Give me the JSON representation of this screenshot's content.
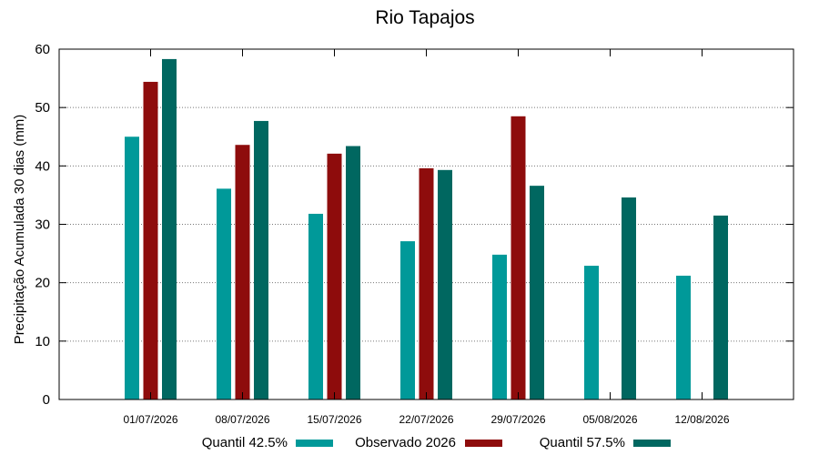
{
  "chart_data": {
    "type": "bar",
    "title": "Rio Tapajos",
    "xlabel": "",
    "ylabel": "Precipitação Acumulada 30 dias (mm)",
    "ylim": [
      0,
      60
    ],
    "yticks": [
      0,
      10,
      20,
      30,
      40,
      50,
      60
    ],
    "grid": "horizontal dotted",
    "legend_position": "bottom",
    "categories": [
      "01/07/2026",
      "08/07/2026",
      "15/07/2026",
      "22/07/2026",
      "29/07/2026",
      "05/08/2026",
      "12/08/2026"
    ],
    "series": [
      {
        "name": "Quantil 42.5%",
        "color": "#009999",
        "values": [
          45.0,
          36.1,
          31.8,
          27.1,
          24.8,
          22.9,
          21.2
        ]
      },
      {
        "name": "Observado 2026",
        "color": "#8e0c0c",
        "values": [
          54.4,
          43.6,
          42.1,
          39.6,
          48.5,
          null,
          null
        ]
      },
      {
        "name": "Quantil 57.5%",
        "color": "#006760",
        "values": [
          58.3,
          47.7,
          43.4,
          39.3,
          36.6,
          34.6,
          31.5
        ]
      }
    ]
  }
}
